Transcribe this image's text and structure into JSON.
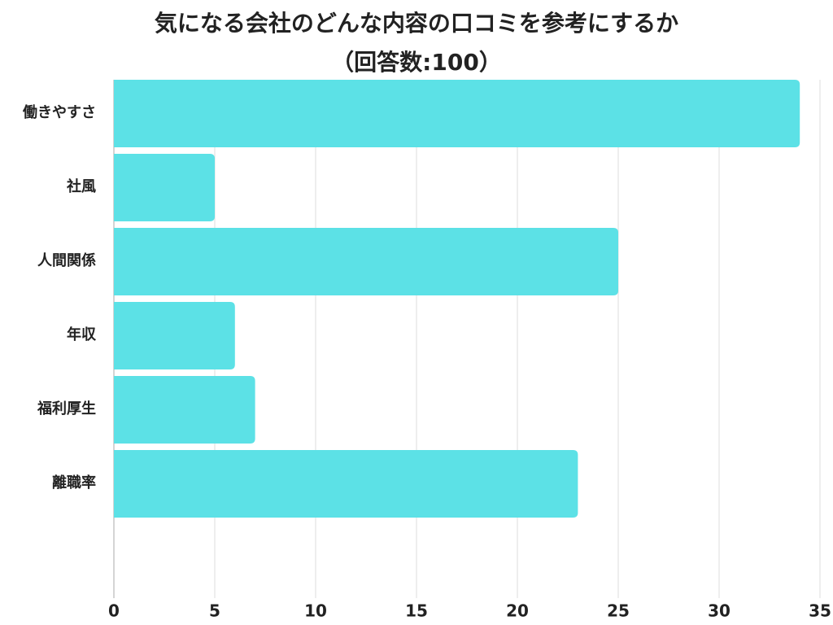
{
  "chart_data": {
    "type": "hbar",
    "title": "気になる会社のどんな内容の口コミを参考にするか",
    "subtitle": "（回答数:100）",
    "categories": [
      "働きやすさ",
      "社風",
      "人間関係",
      "年収",
      "福利厚生",
      "離職率"
    ],
    "values": [
      34,
      5,
      25,
      6,
      7,
      23
    ],
    "color": "#5ce1e6",
    "xlim": [
      0,
      35
    ],
    "xticks": [
      0,
      5,
      10,
      15,
      20,
      25,
      30,
      35
    ],
    "grid": true
  }
}
